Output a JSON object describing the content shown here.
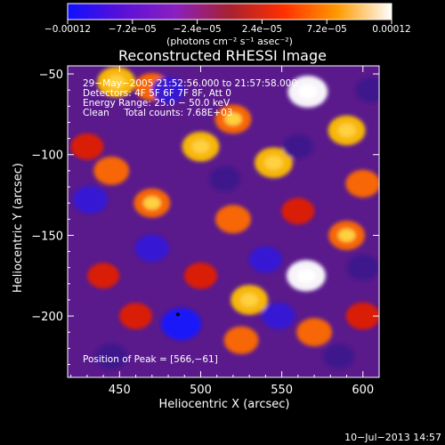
{
  "chart_data": {
    "type": "heatmap",
    "title": "Reconstructed RHESSI Image",
    "xlabel": "Heliocentric X (arcsec)",
    "ylabel": "Heliocentric Y (arcsec)",
    "xlim": [
      418,
      610
    ],
    "ylim": [
      -238,
      -45
    ],
    "xticks": [
      450,
      500,
      550,
      600
    ],
    "xtick_labels": [
      "450",
      "500",
      "550",
      "600"
    ],
    "yticks": [
      -50,
      -100,
      -150,
      -200
    ],
    "ytick_labels": [
      "−50",
      "−100",
      "−150",
      "−200"
    ],
    "colorbar": {
      "range": [
        -0.00012,
        0.00012
      ],
      "tick_values": [
        -0.00012,
        -7.2e-05,
        -2.4e-05,
        2.4e-05,
        7.2e-05,
        0.00012
      ],
      "tick_labels": [
        "−0.00012",
        "−7.2e−05",
        "−2.4e−05",
        "2.4e−05",
        "7.2e−05",
        "0.00012"
      ],
      "unit_label": "(photons cm⁻² s⁻¹ asec⁻²)",
      "colors": [
        "#1010ff",
        "#5a10d8",
        "#8a20c0",
        "#a82030",
        "#ff3000",
        "#ff9a00",
        "#ffffff"
      ]
    },
    "annotations": {
      "time": "29−May−2005 21:52:56.000 to 21:57:58.000",
      "detectors": "Detectors: 4F 5F 6F 7F 8F, Att 0",
      "energy": "Energy Range: 25.0 − 50.0 keV",
      "clean": "Clean     Total counts: 7.68E+03",
      "peak": "Position of Peak = [566,−61]"
    },
    "blobs": [
      {
        "x": 448,
        "y": -55,
        "v": 0.9
      },
      {
        "x": 470,
        "y": -58,
        "v": 0.7
      },
      {
        "x": 430,
        "y": -95,
        "v": 0.6
      },
      {
        "x": 445,
        "y": -110,
        "v": 0.75
      },
      {
        "x": 500,
        "y": -95,
        "v": 0.85
      },
      {
        "x": 520,
        "y": -78,
        "v": 0.8
      },
      {
        "x": 545,
        "y": -105,
        "v": 0.9
      },
      {
        "x": 566,
        "y": -61,
        "v": 1.0
      },
      {
        "x": 590,
        "y": -85,
        "v": 0.85
      },
      {
        "x": 600,
        "y": -118,
        "v": 0.7
      },
      {
        "x": 470,
        "y": -130,
        "v": 0.8
      },
      {
        "x": 520,
        "y": -140,
        "v": 0.75
      },
      {
        "x": 560,
        "y": -135,
        "v": 0.6
      },
      {
        "x": 590,
        "y": -150,
        "v": 0.8
      },
      {
        "x": 565,
        "y": -175,
        "v": 0.95
      },
      {
        "x": 530,
        "y": -190,
        "v": 0.85
      },
      {
        "x": 500,
        "y": -175,
        "v": 0.6
      },
      {
        "x": 440,
        "y": -175,
        "v": 0.55
      },
      {
        "x": 460,
        "y": -200,
        "v": 0.6
      },
      {
        "x": 525,
        "y": -215,
        "v": 0.7
      },
      {
        "x": 570,
        "y": -210,
        "v": 0.75
      },
      {
        "x": 600,
        "y": -200,
        "v": 0.65
      },
      {
        "x": 480,
        "y": -60,
        "v": -0.6
      },
      {
        "x": 432,
        "y": -128,
        "v": -0.7
      },
      {
        "x": 470,
        "y": -158,
        "v": -0.65
      },
      {
        "x": 515,
        "y": -115,
        "v": -0.5
      },
      {
        "x": 540,
        "y": -165,
        "v": -0.6
      },
      {
        "x": 600,
        "y": -170,
        "v": -0.55
      },
      {
        "x": 488,
        "y": -205,
        "v": -1.0
      },
      {
        "x": 548,
        "y": -200,
        "v": -0.6
      },
      {
        "x": 585,
        "y": -225,
        "v": -0.5
      },
      {
        "x": 445,
        "y": -225,
        "v": -0.55
      },
      {
        "x": 560,
        "y": -95,
        "v": -0.45
      },
      {
        "x": 605,
        "y": -60,
        "v": -0.5
      }
    ]
  },
  "footer_date": "10−Jul−2013 14:57"
}
